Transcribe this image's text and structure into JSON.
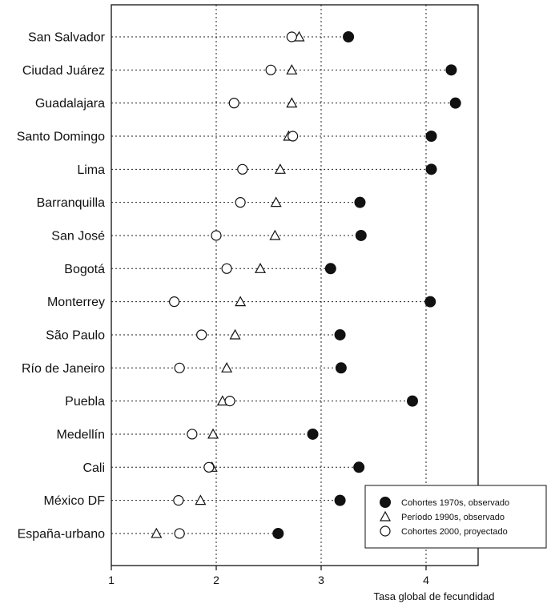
{
  "chart_data": {
    "type": "scatter",
    "xlabel": "Tasa global de fecundidad",
    "ylabel": "",
    "xlim": [
      1,
      4.5
    ],
    "xticks": [
      1,
      2,
      3,
      4
    ],
    "grid": "vertical dotted at 2, 3, 4",
    "legend_position": "bottom-right",
    "categories": [
      "San Salvador",
      "Ciudad Juárez",
      "Guadalajara",
      "Santo Domingo",
      "Lima",
      "Barranquilla",
      "San José",
      "Bogotá",
      "Monterrey",
      "São Paulo",
      "Río de Janeiro",
      "Puebla",
      "Medellín",
      "Cali",
      "México DF",
      "España-urbano"
    ],
    "series": [
      {
        "name": "Cohortes 1970s, observado",
        "marker": "filled-circle",
        "values": [
          3.26,
          4.24,
          4.28,
          4.05,
          4.05,
          3.37,
          3.38,
          3.09,
          4.04,
          3.18,
          3.19,
          3.87,
          2.92,
          3.36,
          3.18,
          2.59
        ]
      },
      {
        "name": "Período 1990s, observado",
        "marker": "triangle",
        "values": [
          2.79,
          2.72,
          2.72,
          2.69,
          2.61,
          2.57,
          2.56,
          2.42,
          2.23,
          2.18,
          2.1,
          2.06,
          1.97,
          1.96,
          1.85,
          1.43
        ]
      },
      {
        "name": "Cohortes 2000, proyectado",
        "marker": "open-circle",
        "values": [
          2.72,
          2.52,
          2.17,
          2.73,
          2.25,
          2.23,
          2.0,
          2.1,
          1.6,
          1.86,
          1.65,
          2.13,
          1.77,
          1.93,
          1.64,
          1.65
        ]
      }
    ]
  }
}
